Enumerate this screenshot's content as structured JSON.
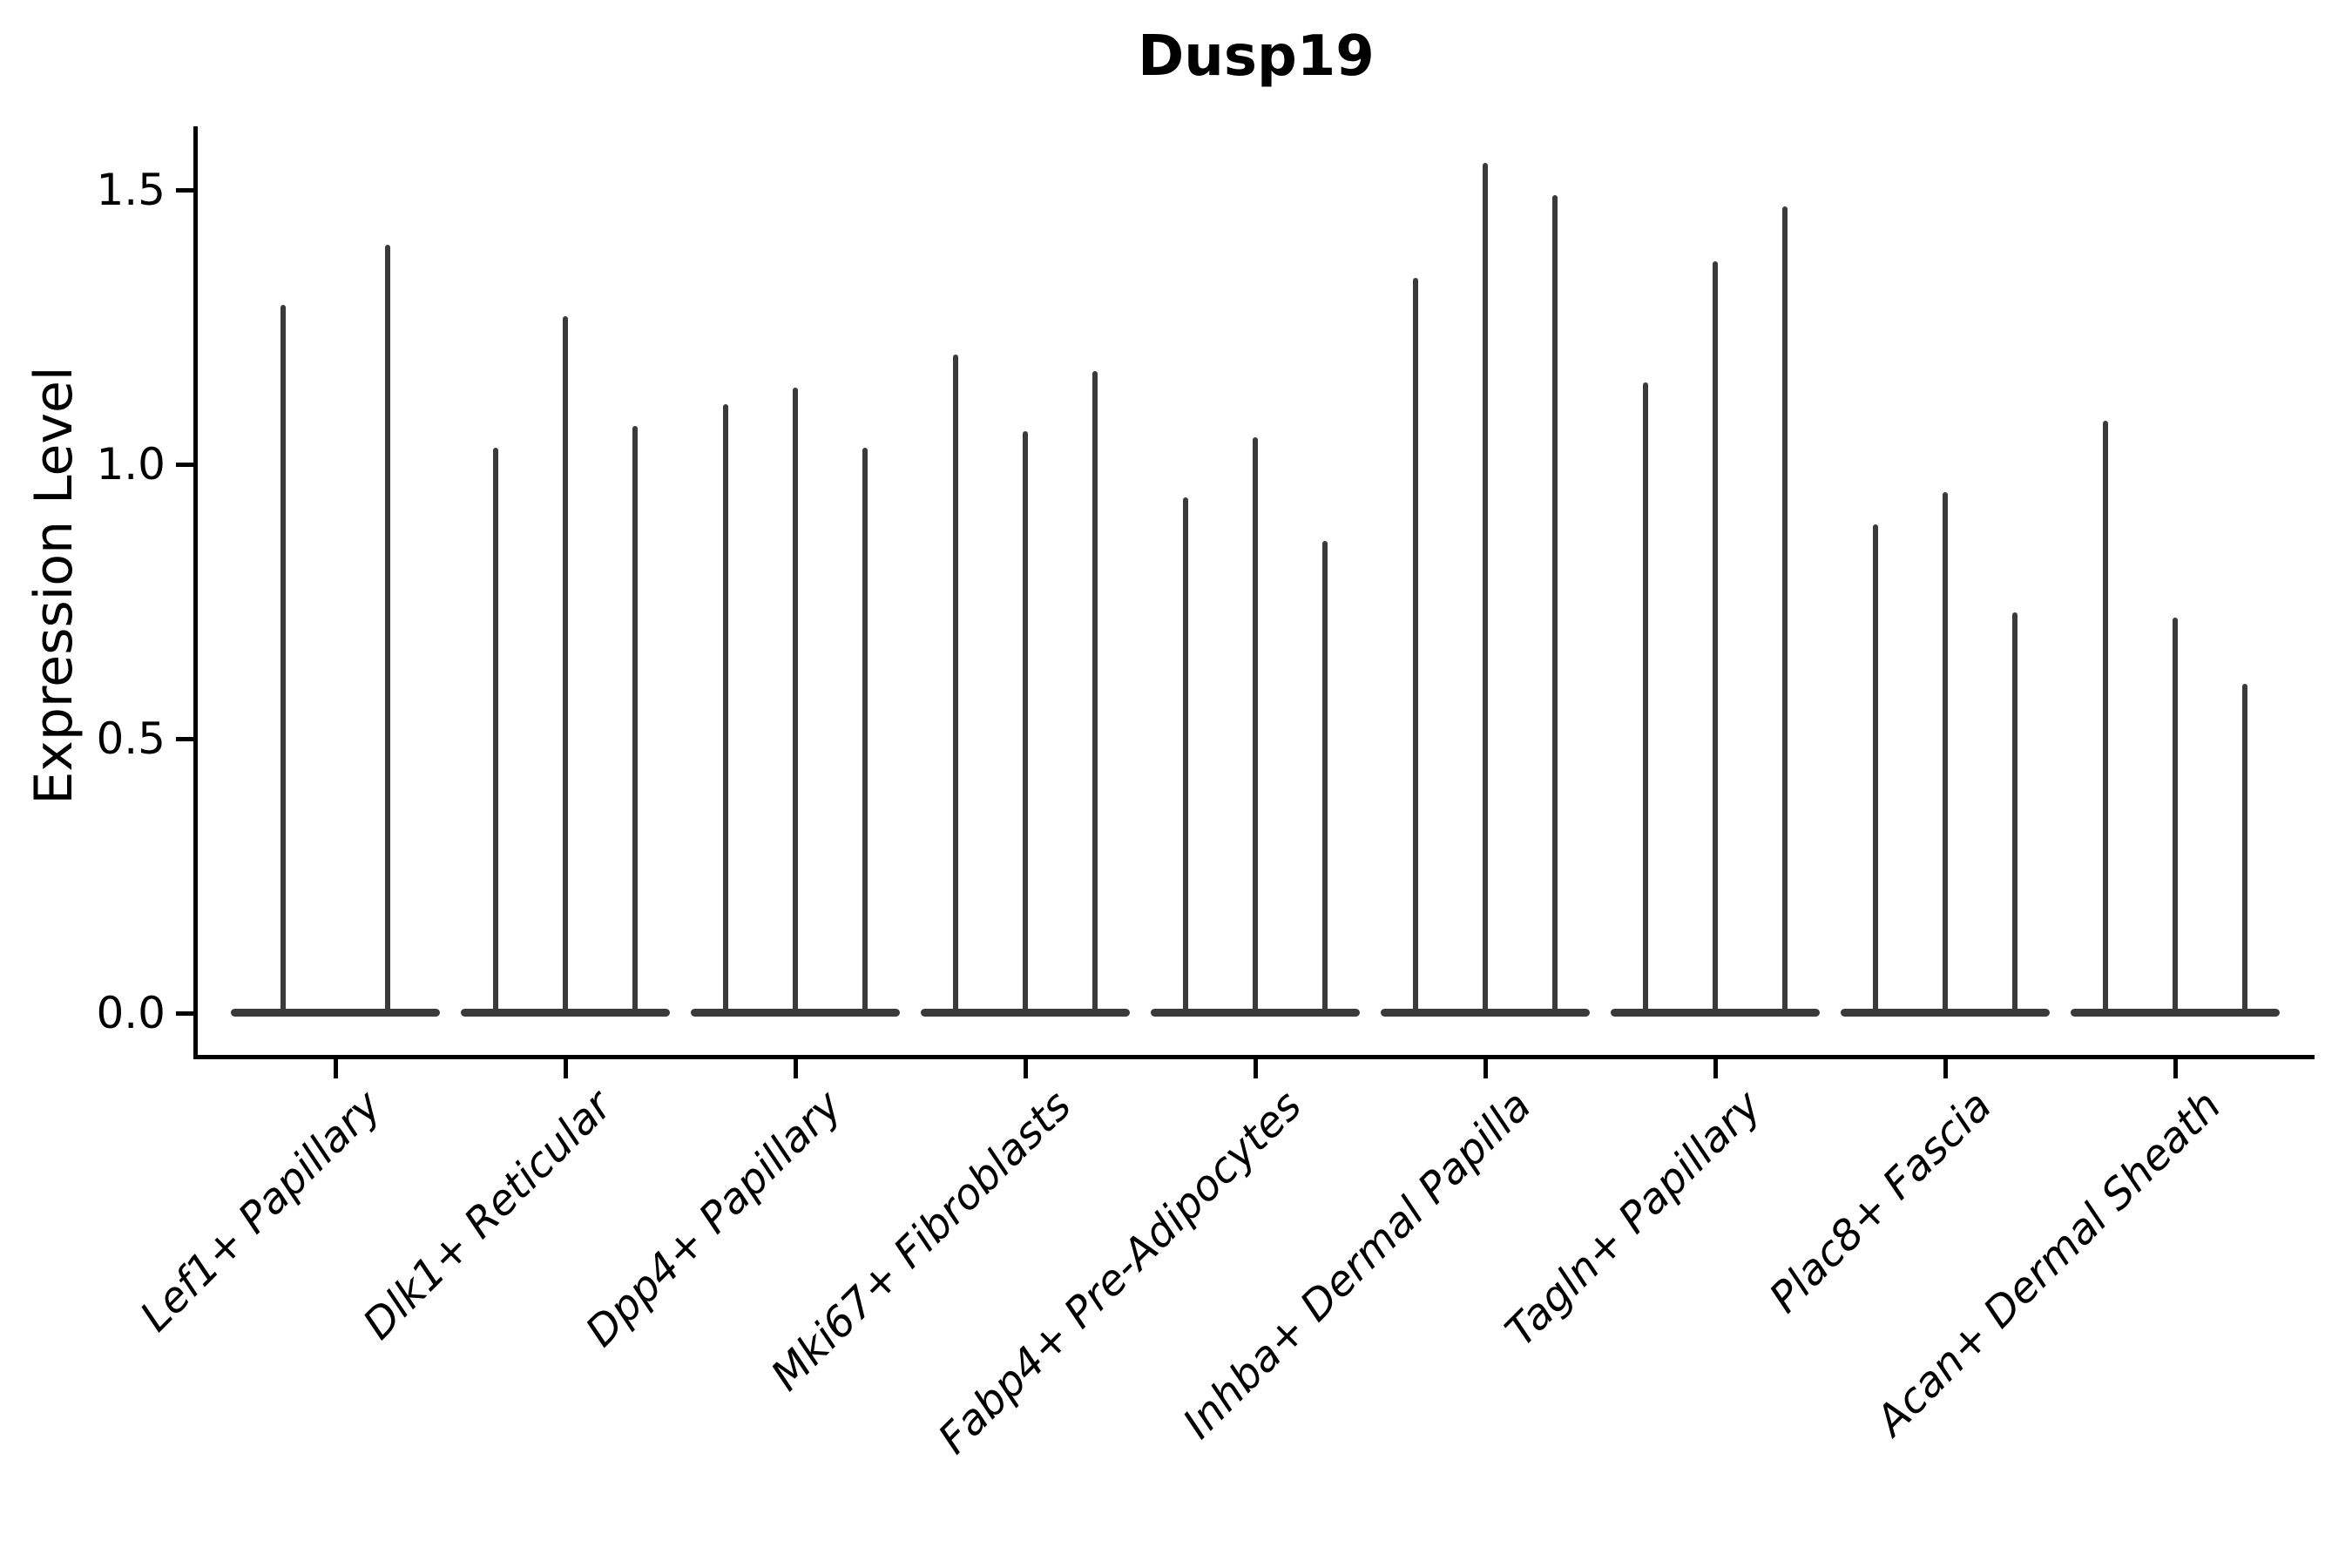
{
  "title": "Dusp19",
  "chart_data": {
    "type": "violin",
    "title": "Dusp19",
    "xlabel": "",
    "ylabel": "Expression Level",
    "ylim": [
      -0.08,
      1.63
    ],
    "grid": false,
    "legend": "none",
    "yticks": [
      0.0,
      0.5,
      1.0,
      1.5
    ],
    "ytick_labels": [
      "0.0",
      "0.5",
      "1.0",
      "1.5"
    ],
    "categories": [
      "Lef1+ Papillary",
      "Dlk1+ Reticular",
      "Dpp4+ Papillary",
      "Mki67+ Fibroblasts",
      "Fabp4+ Pre-Adipocytes",
      "Inhba+ Dermal Papilla",
      "Tagln+ Papillary",
      "Plac8+ Fascia",
      "Acan+ Dermal Sheath"
    ],
    "groups": [
      {
        "category": "Lef1+ Papillary",
        "violin_max_values": [
          1.29,
          1.4
        ]
      },
      {
        "category": "Dlk1+ Reticular",
        "violin_max_values": [
          1.03,
          1.27,
          1.07
        ]
      },
      {
        "category": "Dpp4+ Papillary",
        "violin_max_values": [
          1.11,
          1.14,
          1.03
        ]
      },
      {
        "category": "Mki67+ Fibroblasts",
        "violin_max_values": [
          1.2,
          1.06,
          1.17
        ]
      },
      {
        "category": "Fabp4+ Pre-Adipocytes",
        "violin_max_values": [
          0.94,
          1.05,
          0.86
        ]
      },
      {
        "category": "Inhba+ Dermal Papilla",
        "violin_max_values": [
          1.34,
          1.55,
          1.49
        ]
      },
      {
        "category": "Tagln+ Papillary",
        "violin_max_values": [
          1.15,
          1.37,
          1.47
        ]
      },
      {
        "category": "Plac8+ Fascia",
        "violin_max_values": [
          0.89,
          0.95,
          0.73
        ]
      },
      {
        "category": "Acan+ Dermal Sheath",
        "violin_max_values": [
          1.08,
          0.72,
          0.6
        ]
      }
    ],
    "colors": {
      "violin": "#3a3a3a",
      "axis": "#000000",
      "text": "#000000",
      "background": "#ffffff"
    }
  }
}
